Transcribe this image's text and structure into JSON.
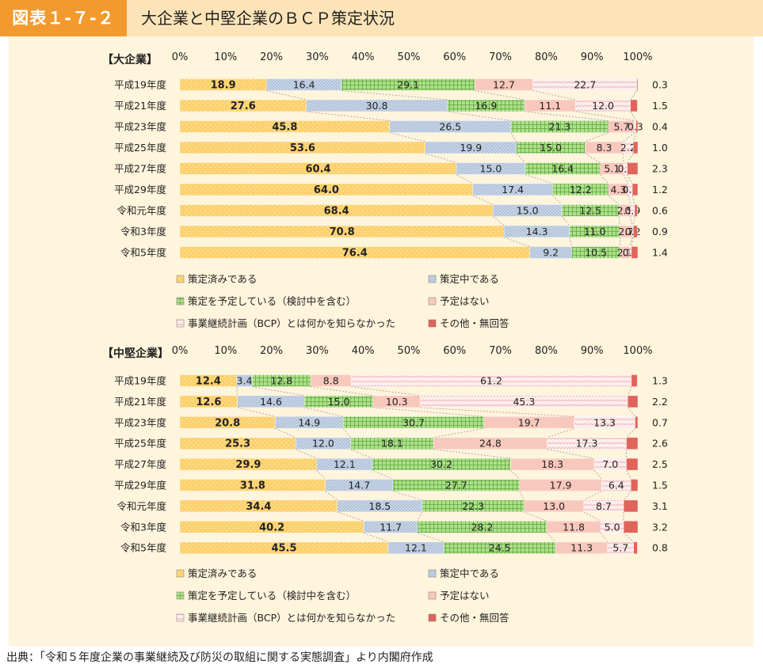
{
  "header": {
    "figure_number": "図表１-７-２",
    "title": "大企業と中堅企業のＢＣＰ策定状況"
  },
  "source": "出典：「令和５年度企業の事業継続及び防災の取組に関する実態調査」より内閣府作成",
  "colors": {
    "header_bg": "#fce4b8",
    "tag_bg": "#f29a2e",
    "panel_bg": "#fff4dc",
    "formulated": "#fcd16e",
    "in_progress": "#c8d5e6",
    "planning": "#aee08c",
    "none": "#f9c8bd",
    "unaware": "#fdeeee",
    "other": "#e0645a"
  },
  "chart_data": [
    {
      "type": "bar",
      "orientation": "horizontal",
      "stacked": true,
      "title": "【大企業】",
      "xlim": [
        0,
        100
      ],
      "ticks": [
        "0%",
        "10%",
        "20%",
        "30%",
        "40%",
        "50%",
        "60%",
        "70%",
        "80%",
        "90%",
        "100%"
      ],
      "categories": [
        "平成19年度",
        "平成21年度",
        "平成23年度",
        "平成25年度",
        "平成27年度",
        "平成29年度",
        "令和元年度",
        "令和3年度",
        "令和5年度"
      ],
      "series": [
        {
          "name": "策定済みである",
          "values": [
            18.9,
            27.6,
            45.8,
            53.6,
            60.4,
            64.0,
            68.4,
            70.8,
            76.4
          ]
        },
        {
          "name": "策定中である",
          "values": [
            16.4,
            30.8,
            26.5,
            19.9,
            15.0,
            17.4,
            15.0,
            14.3,
            9.2
          ]
        },
        {
          "name": "策定を予定している（検討中を含む）",
          "values": [
            29.1,
            16.9,
            21.3,
            15.0,
            16.4,
            12.2,
            12.5,
            11.0,
            10.5
          ]
        },
        {
          "name": "予定はない",
          "values": [
            12.7,
            11.1,
            5.7,
            8.3,
            5.1,
            4.3,
            2.5,
            2.7,
            2.1
          ]
        },
        {
          "name": "事業継続計画（BCP）とは何かを知らなかった",
          "values": [
            22.7,
            12.0,
            0.3,
            2.2,
            0.8,
            0.9,
            0.9,
            0.2,
            0.4
          ]
        },
        {
          "name": "その他・無回答",
          "values": [
            0.3,
            1.5,
            0.4,
            1.0,
            2.3,
            1.2,
            0.6,
            0.9,
            1.4
          ]
        }
      ],
      "legend_position": "bottom"
    },
    {
      "type": "bar",
      "orientation": "horizontal",
      "stacked": true,
      "title": "【中堅企業】",
      "xlim": [
        0,
        100
      ],
      "ticks": [
        "0%",
        "10%",
        "20%",
        "30%",
        "40%",
        "50%",
        "60%",
        "70%",
        "80%",
        "90%",
        "100%"
      ],
      "categories": [
        "平成19年度",
        "平成21年度",
        "平成23年度",
        "平成25年度",
        "平成27年度",
        "平成29年度",
        "令和元年度",
        "令和3年度",
        "令和5年度"
      ],
      "series": [
        {
          "name": "策定済みである",
          "values": [
            12.4,
            12.6,
            20.8,
            25.3,
            29.9,
            31.8,
            34.4,
            40.2,
            45.5
          ]
        },
        {
          "name": "策定中である",
          "values": [
            3.4,
            14.6,
            14.9,
            12.0,
            12.1,
            14.7,
            18.5,
            11.7,
            12.1
          ]
        },
        {
          "name": "策定を予定している（検討中を含む）",
          "values": [
            12.8,
            15.0,
            30.7,
            18.1,
            30.2,
            27.7,
            22.3,
            28.2,
            24.5
          ]
        },
        {
          "name": "予定はない",
          "values": [
            8.8,
            10.3,
            19.7,
            24.8,
            18.3,
            17.9,
            13.0,
            11.8,
            11.3
          ]
        },
        {
          "name": "事業継続計画（BCP）とは何かを知らなかった",
          "values": [
            61.2,
            45.3,
            13.3,
            17.3,
            7.0,
            6.4,
            8.7,
            5.0,
            5.7
          ]
        },
        {
          "name": "その他・無回答",
          "values": [
            1.3,
            2.2,
            0.7,
            2.6,
            2.5,
            1.5,
            3.1,
            3.2,
            0.8
          ]
        }
      ],
      "legend_position": "bottom"
    }
  ]
}
